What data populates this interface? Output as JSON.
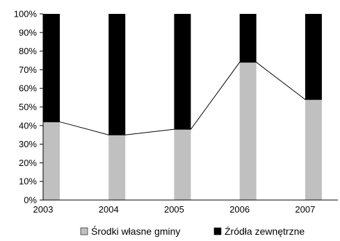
{
  "chart_data": {
    "type": "bar",
    "stacked": "percent",
    "title": "",
    "xlabel": "",
    "ylabel": "",
    "categories": [
      "2003",
      "2004",
      "2005",
      "2006",
      "2007"
    ],
    "series": [
      {
        "name": "Środki własne gminy",
        "color": "#c0c0c0",
        "values": [
          42,
          35,
          38,
          74,
          54
        ]
      },
      {
        "name": "Źródła zewnętrzne",
        "color": "#000000",
        "values": [
          58,
          65,
          62,
          26,
          46
        ]
      }
    ],
    "line_overlay": {
      "series": "Środki własne gminy",
      "color": "#000000"
    },
    "ylim": [
      0,
      100
    ],
    "yticks": [
      "0%",
      "10%",
      "20%",
      "30%",
      "40%",
      "50%",
      "60%",
      "70%",
      "80%",
      "90%",
      "100%"
    ],
    "grid": false,
    "legend_position": "bottom"
  }
}
